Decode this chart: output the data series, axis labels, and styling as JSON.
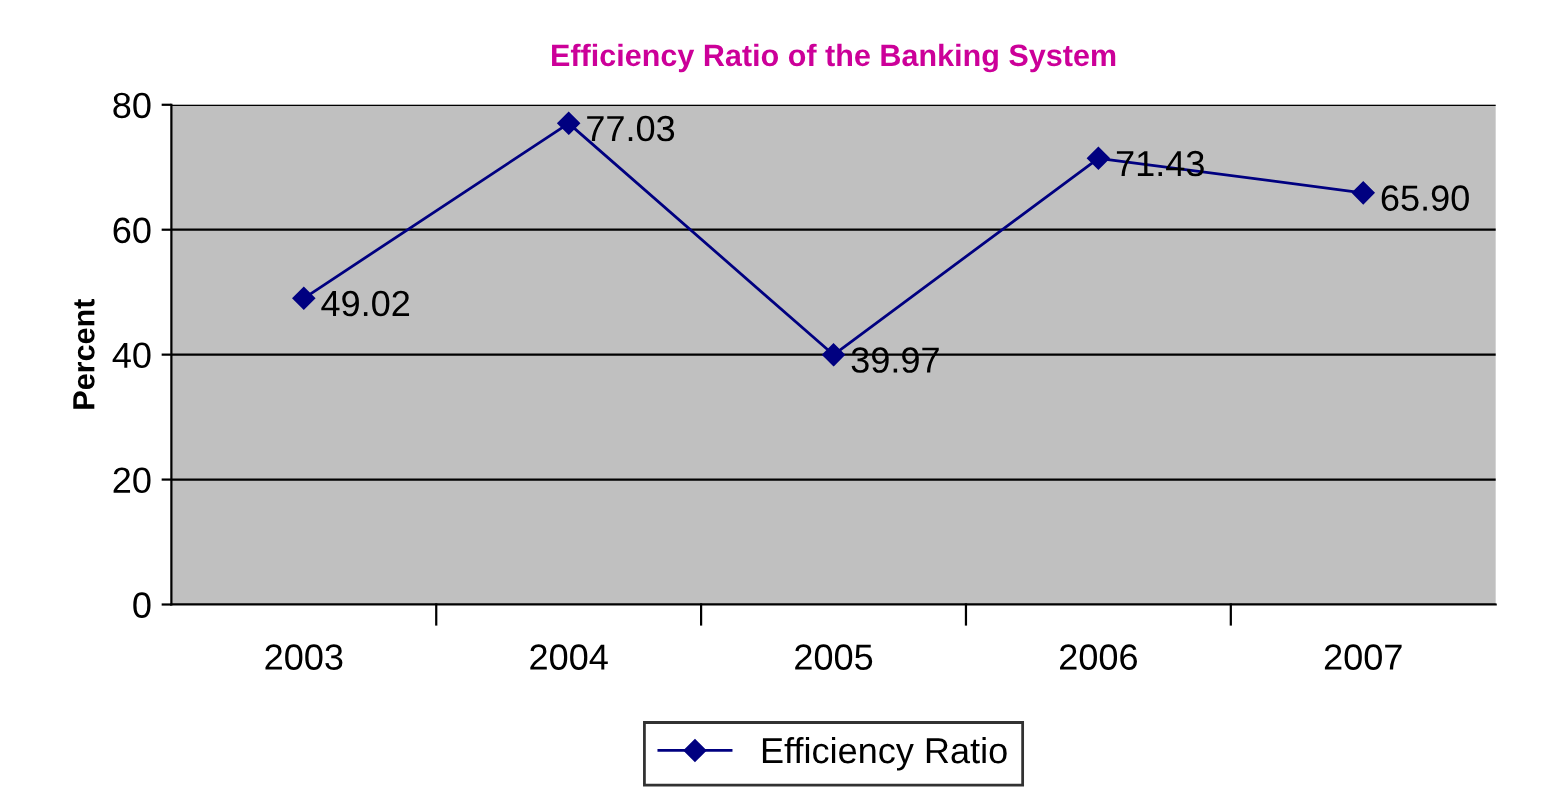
{
  "chart_data": {
    "type": "line",
    "title": "Efficiency Ratio of the Banking System",
    "ylabel": "Percent",
    "categories": [
      "2003",
      "2004",
      "2005",
      "2006",
      "2007"
    ],
    "series": [
      {
        "name": "Efficiency Ratio",
        "color": "#000080",
        "values": [
          49.02,
          77.03,
          39.97,
          71.43,
          65.9
        ]
      }
    ],
    "value_labels": [
      "49.02",
      "77.03",
      "39.97",
      "71.43",
      "65.90"
    ],
    "ylim": [
      0,
      80
    ],
    "yticks": [
      0,
      20,
      40,
      60,
      80
    ],
    "grid": "y",
    "legend": "bottom",
    "marker": "diamond",
    "line_style": "solid"
  }
}
